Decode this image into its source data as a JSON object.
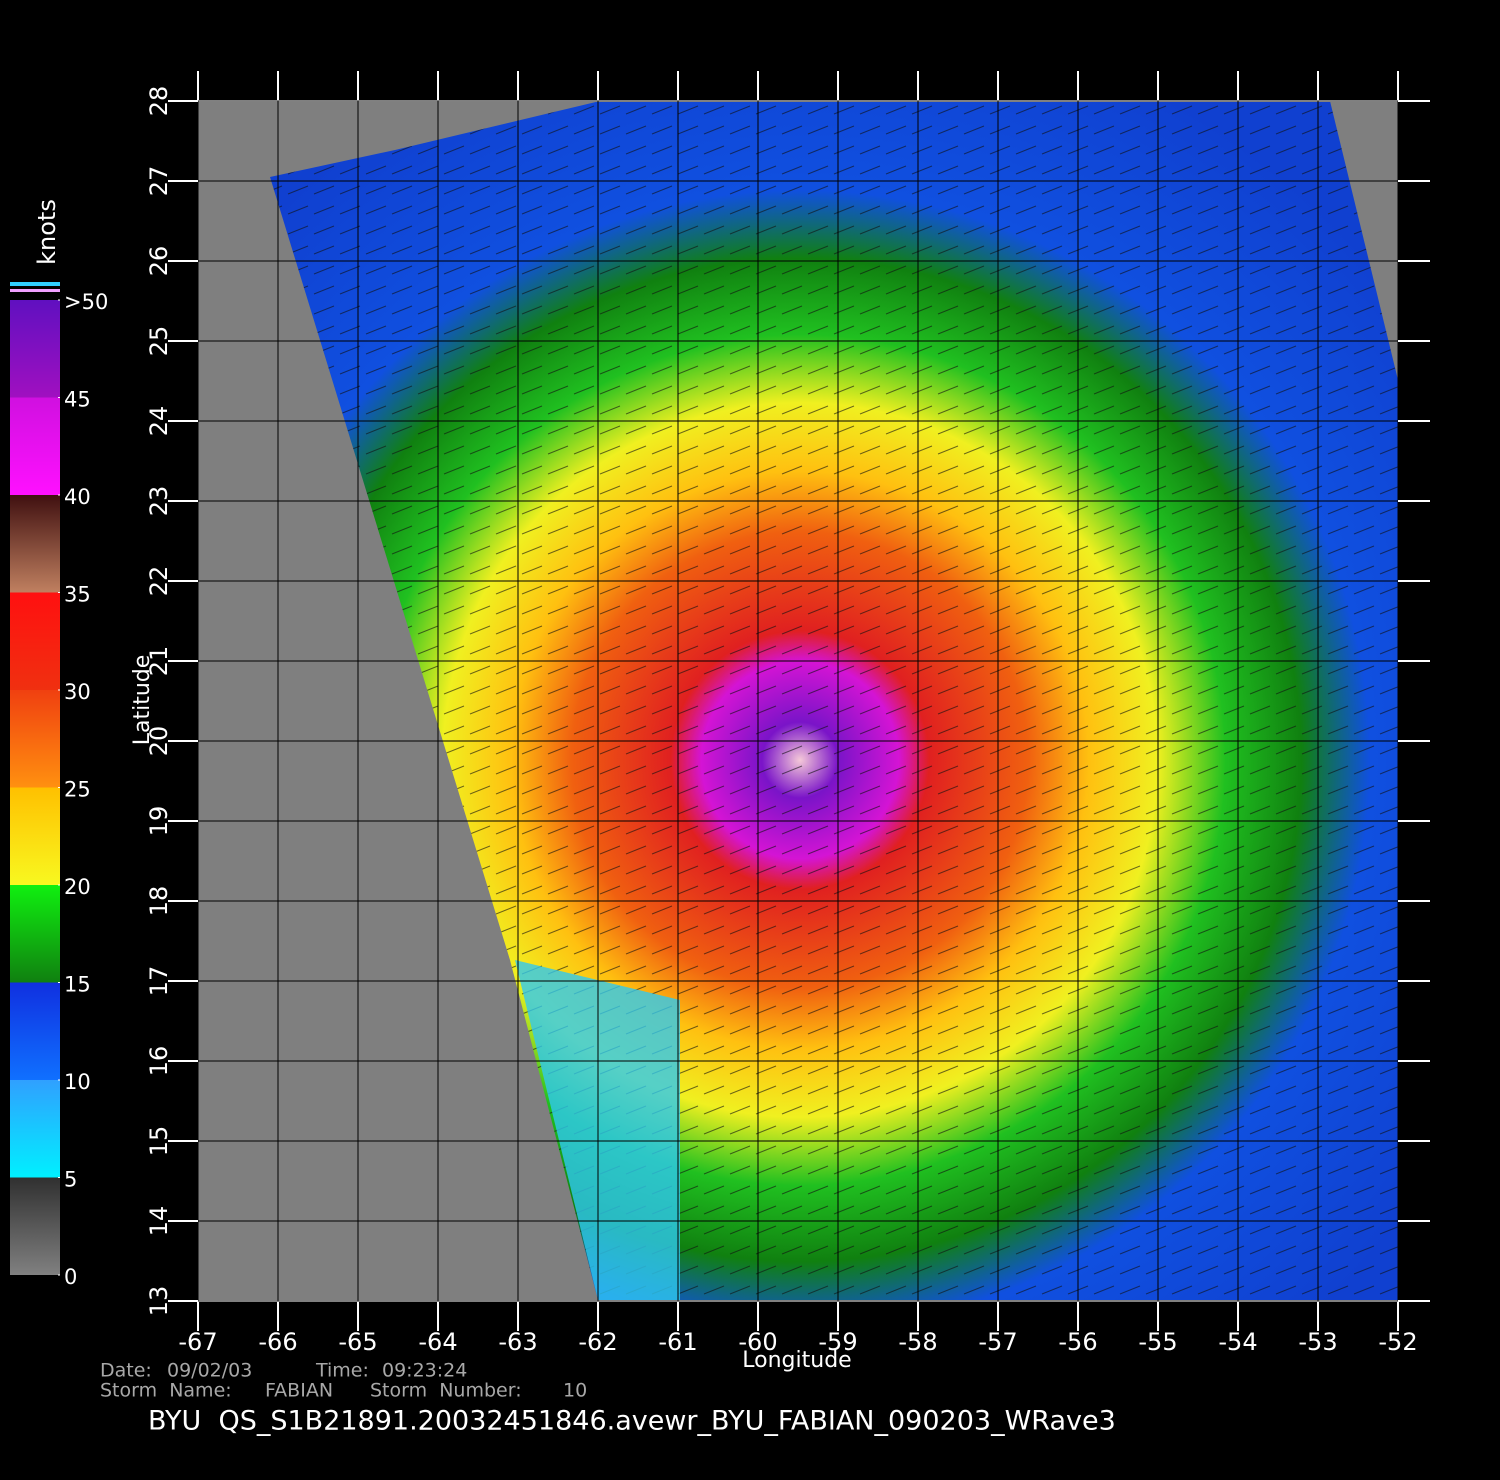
{
  "map": {
    "xlabel": "Longitude",
    "ylabel": "Latitude",
    "xlim": [
      -67,
      -52
    ],
    "ylim": [
      13,
      28
    ],
    "xticks": [
      -67,
      -66,
      -65,
      -64,
      -63,
      -62,
      -61,
      -60,
      -59,
      -58,
      -57,
      -56,
      -55,
      -54,
      -53,
      -52
    ],
    "yticks": [
      13,
      14,
      15,
      16,
      17,
      18,
      19,
      20,
      21,
      22,
      23,
      24,
      25,
      26,
      27,
      28
    ],
    "grid": true
  },
  "colorbar": {
    "title": "knots",
    "ticks": [
      0,
      5,
      10,
      15,
      20,
      25,
      30,
      35,
      40,
      45,
      {
        "value": 50,
        "label": ">50"
      }
    ]
  },
  "footer": {
    "date_label": "Date:",
    "date": "09/02/03",
    "time_label": "Time:",
    "time": "09:23:24",
    "storm_name_label": "Storm  Name:",
    "storm_name": "FABIAN",
    "storm_number_label": "Storm  Number:",
    "storm_number": 10,
    "product": "BYU  QS_S1B21891.20032451846.avewr_BYU_FABIAN_090203_WRave3"
  }
}
